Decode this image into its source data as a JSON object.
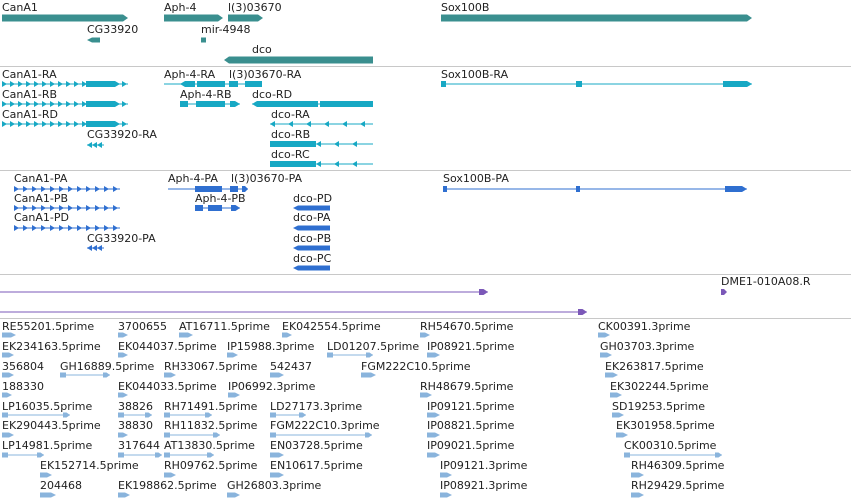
{
  "colors": {
    "gene": "#3a8f8f",
    "mrna": "#17a8c4",
    "cds": "#2f6fd0",
    "est": "#8ab4dc",
    "misc": "#7b58b8",
    "separator": "#c8c8c8"
  },
  "tracks": {
    "genes": {
      "labels": [
        "CanA1",
        "CG33920",
        "Aph-4",
        "l(3)03670",
        "mir-4948",
        "dco",
        "Sox100B"
      ]
    },
    "transcripts": {
      "labels": [
        "CanA1-RA",
        "CanA1-RB",
        "CanA1-RD",
        "CG33920-RA",
        "Aph-4-RA",
        "l(3)03670-RA",
        "Aph-4-RB",
        "dco-RD",
        "dco-RA",
        "dco-RB",
        "dco-RC",
        "Sox100B-RA"
      ]
    },
    "proteins": {
      "labels": [
        "CanA1-PA",
        "CanA1-PB",
        "CanA1-PD",
        "CG33920-PA",
        "Aph-4-PA",
        "l(3)03670-PA",
        "Aph-4-PB",
        "dco-PD",
        "dco-PA",
        "dco-PB",
        "dco-PC",
        "Sox100B-PA"
      ]
    },
    "clones": {
      "labels": [
        "DME1-010A08.R"
      ]
    },
    "ests": {
      "labels": [
        "RE55201.5prime",
        "3700655",
        "AT16711.5prime",
        "EK042554.5prime",
        "RH54670.5prime",
        "CK00391.3prime",
        "EK234163.5prime",
        "EK044037.5prime",
        "IP15988.3prime",
        "LD01207.5prime",
        "IP08921.5prime",
        "GH03703.3prime",
        "356804",
        "GH16889.5prime",
        "RH33067.5prime",
        "542437",
        "FGM222C10.5prime",
        "EK263817.5prime",
        "188330",
        "EK044033.5prime",
        "IP06992.3prime",
        "RH48679.5prime",
        "EK302244.5prime",
        "LP16035.5prime",
        "38826",
        "RH71491.5prime",
        "LD27173.3prime",
        "IP09121.5prime",
        "SD19253.5prime",
        "EK290443.5prime",
        "38830",
        "RH11832.5prime",
        "FGM222C10.3prime",
        "IP08821.5prime",
        "EK301958.5prime",
        "LP14981.5prime",
        "317644",
        "AT13830.5prime",
        "EN03728.5prime",
        "IP09021.5prime",
        "CK00310.5prime",
        "EK152714.5prime",
        "RH09762.5prime",
        "EN10617.5prime",
        "IP09121.3prime",
        "RH46309.5prime",
        "204468",
        "EK198862.5prime",
        "GH26803.3prime",
        "IP08921.3prime",
        "RH29429.5prime"
      ]
    }
  }
}
